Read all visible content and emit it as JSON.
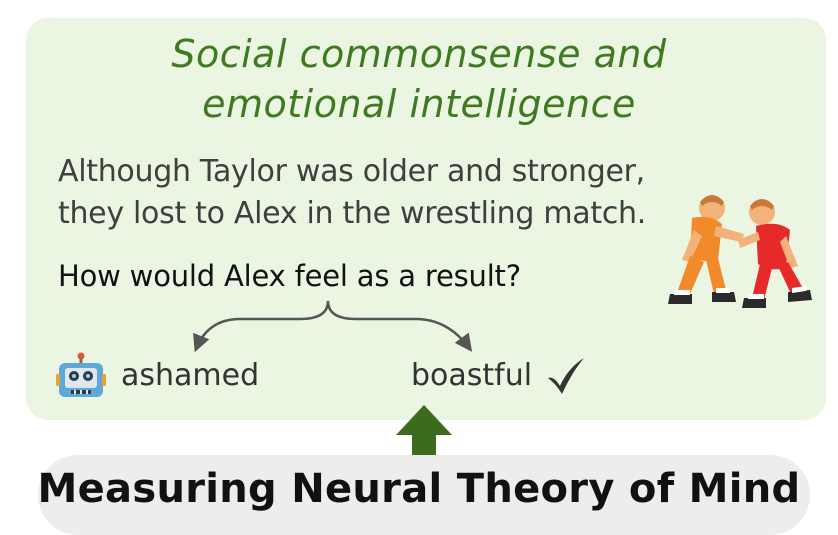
{
  "title": {
    "line1": "Social commonsense and",
    "line2": "emotional intelligence"
  },
  "story": {
    "line1": "Although Taylor was older and stronger,",
    "line2": "they lost to Alex in the wrestling match."
  },
  "question": "How would Alex feel as a result?",
  "answers": {
    "wrong": "ashamed",
    "right": "boastful"
  },
  "footer": "Measuring Neural Theory of Mind",
  "colors": {
    "panel": "#eaf5e2",
    "title": "#3f7a21",
    "arrow_up": "#3c6b1e",
    "footer_bg": "#ededed"
  },
  "icons": [
    "robot-icon",
    "checkmark-icon",
    "wrestlers-icon",
    "brace-arrows",
    "up-arrow-icon"
  ]
}
